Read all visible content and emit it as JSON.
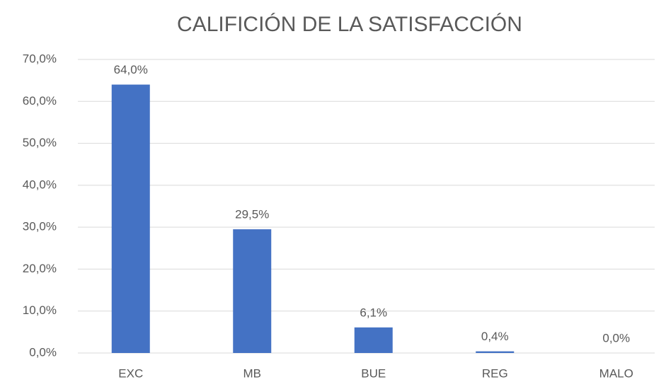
{
  "chart_data": {
    "type": "bar",
    "title": "CALIFICIÓN DE LA SATISFACCIÓN",
    "categories": [
      "EXC",
      "MB",
      "BUE",
      "REG",
      "MALO"
    ],
    "values": [
      64.0,
      29.5,
      6.1,
      0.4,
      0.0
    ],
    "value_labels": [
      "64,0%",
      "29,5%",
      "6,1%",
      "0,4%",
      "0,0%"
    ],
    "color": "#4472c4",
    "ylim": [
      0,
      70
    ],
    "yticks": [
      {
        "value": 0,
        "label": "0,0%"
      },
      {
        "value": 10,
        "label": "10,0%"
      },
      {
        "value": 20,
        "label": "20,0%"
      },
      {
        "value": 30,
        "label": "30,0%"
      },
      {
        "value": 40,
        "label": "40,0%"
      },
      {
        "value": 50,
        "label": "50,0%"
      },
      {
        "value": 60,
        "label": "60,0%"
      },
      {
        "value": 70,
        "label": "70,0%"
      }
    ],
    "grid": true
  }
}
